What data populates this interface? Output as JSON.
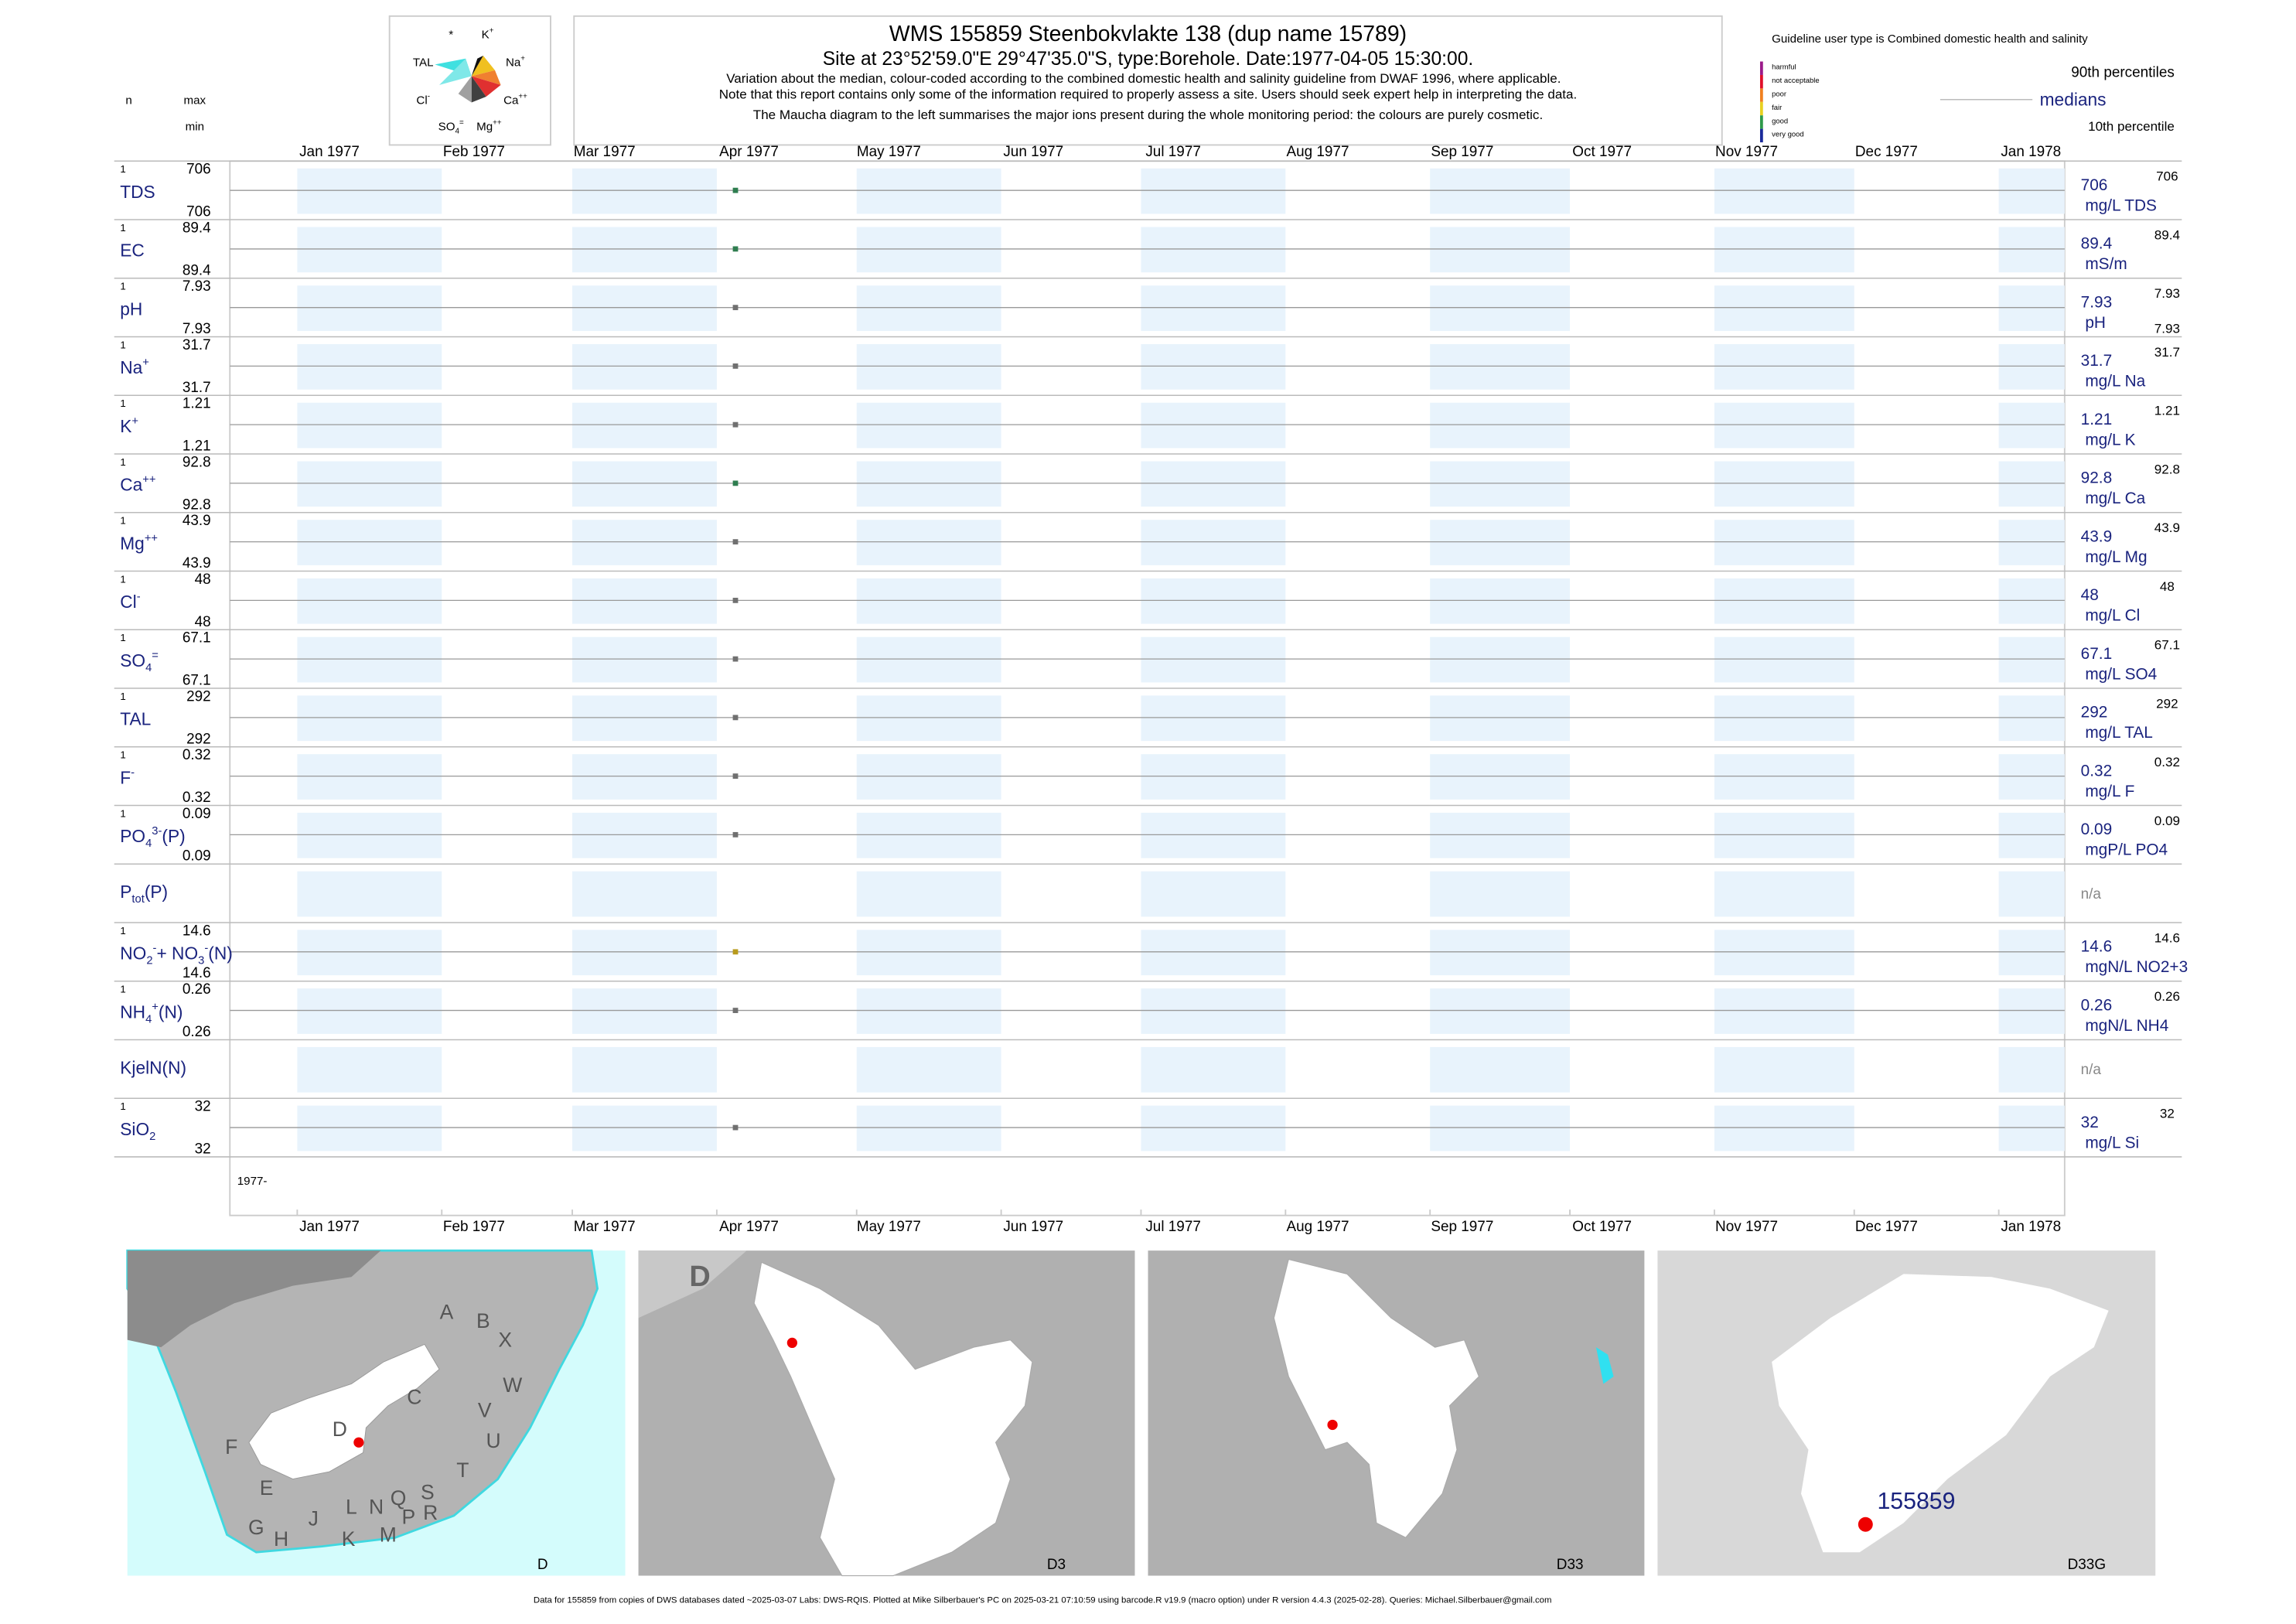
{
  "header": {
    "title": "WMS 155859  Steenbokvlakte 138 (dup name 15789)",
    "subtitle": "Site at 23°52'59.0\"E 29°47'35.0\"S, type:Borehole. Date:1977-04-05 15:30:00.",
    "notes": [
      "Variation about the median,  colour-coded according to the combined domestic health and salinity guideline from DWAF 1996, where applicable.",
      "Note that this report contains only some of the information required to properly assess a site. Users should seek expert help in interpreting the data.",
      "The Maucha diagram to the left summarises the major ions present during the whole monitoring period: the colours are purely cosmetic."
    ]
  },
  "left_header": {
    "n": "n",
    "max": "max",
    "min": "min"
  },
  "guideline": {
    "title": "Guideline user type is Combined domestic health and salinity",
    "levels": [
      {
        "label": "harmful",
        "color": "#9b1b8a"
      },
      {
        "label": "not acceptable",
        "color": "#e0102a"
      },
      {
        "label": "poor",
        "color": "#f08020"
      },
      {
        "label": "fair",
        "color": "#e8d020"
      },
      {
        "label": "good",
        "color": "#2e9a4a"
      },
      {
        "label": "very good",
        "color": "#1a2a9a"
      }
    ]
  },
  "percentile_legend": {
    "p90": "90th percentiles",
    "median": "medians",
    "p10": "10th percentile"
  },
  "maucha": {
    "labels": [
      [
        {
          "text": "*"
        }
      ],
      [
        {
          "text": "K"
        },
        {
          "text": "+",
          "pos": "sup"
        }
      ],
      [
        {
          "text": "TAL"
        }
      ],
      [
        {
          "text": "Na"
        },
        {
          "text": "+",
          "pos": "sup"
        }
      ],
      [
        {
          "text": "Cl"
        },
        {
          "text": "-",
          "pos": "sup"
        }
      ],
      [
        {
          "text": "Ca"
        },
        {
          "text": "++",
          "pos": "sup"
        }
      ],
      [
        {
          "text": "SO"
        },
        {
          "text": "4",
          "pos": "sub"
        },
        {
          "text": "=",
          "pos": "sup"
        }
      ],
      [
        {
          "text": "Mg"
        },
        {
          "text": "++",
          "pos": "sup"
        }
      ]
    ]
  },
  "time_axis": {
    "ticks": [
      {
        "value": "1977-01-01",
        "label": "Jan 1977"
      },
      {
        "value": "1977-02-01",
        "label": "Feb 1977"
      },
      {
        "value": "1977-03-01",
        "label": "Mar 1977"
      },
      {
        "value": "1977-04-01",
        "label": "Apr 1977"
      },
      {
        "value": "1977-05-01",
        "label": "May 1977"
      },
      {
        "value": "1977-06-01",
        "label": "Jun 1977"
      },
      {
        "value": "1977-07-01",
        "label": "Jul 1977"
      },
      {
        "value": "1977-08-01",
        "label": "Aug 1977"
      },
      {
        "value": "1977-09-01",
        "label": "Sep 1977"
      },
      {
        "value": "1977-10-01",
        "label": "Oct 1977"
      },
      {
        "value": "1977-11-01",
        "label": "Nov 1977"
      },
      {
        "value": "1977-12-01",
        "label": "Dec 1977"
      },
      {
        "value": "1978-01-01",
        "label": "Jan 1978"
      }
    ],
    "year_label": "1977-"
  },
  "chart_data": [
    {
      "type": "scatter",
      "name": [
        {
          "text": "TDS"
        }
      ],
      "n": 1,
      "max": 706,
      "min": 706,
      "x": [
        "1977-04-05"
      ],
      "values": [
        706
      ],
      "color": "#2e7d4f",
      "median": 706,
      "unit": "mg/L TDS",
      "p90": 706
    },
    {
      "type": "scatter",
      "name": [
        {
          "text": "EC"
        }
      ],
      "n": 1,
      "max": 89.4,
      "min": 89.4,
      "x": [
        "1977-04-05"
      ],
      "values": [
        89.4
      ],
      "color": "#2e7d4f",
      "median": 89.4,
      "unit": "mS/m",
      "p90": 89.4
    },
    {
      "type": "scatter",
      "name": [
        {
          "text": "pH"
        }
      ],
      "n": 1,
      "max": 7.93,
      "min": 7.93,
      "x": [
        "1977-04-05"
      ],
      "values": [
        7.93
      ],
      "color": "#707070",
      "median": 7.93,
      "unit": "pH",
      "p90": 7.93,
      "p10": 7.93
    },
    {
      "type": "scatter",
      "name": [
        {
          "text": "Na"
        },
        {
          "text": "+",
          "pos": "sup"
        }
      ],
      "n": 1,
      "max": 31.7,
      "min": 31.7,
      "x": [
        "1977-04-05"
      ],
      "values": [
        31.7
      ],
      "color": "#707070",
      "median": 31.7,
      "unit": "mg/L Na",
      "p90": 31.7
    },
    {
      "type": "scatter",
      "name": [
        {
          "text": "K"
        },
        {
          "text": "+",
          "pos": "sup"
        }
      ],
      "n": 1,
      "max": 1.21,
      "min": 1.21,
      "x": [
        "1977-04-05"
      ],
      "values": [
        1.21
      ],
      "color": "#707070",
      "median": 1.21,
      "unit": "mg/L K",
      "p90": 1.21
    },
    {
      "type": "scatter",
      "name": [
        {
          "text": "Ca"
        },
        {
          "text": "++",
          "pos": "sup"
        }
      ],
      "n": 1,
      "max": 92.8,
      "min": 92.8,
      "x": [
        "1977-04-05"
      ],
      "values": [
        92.8
      ],
      "color": "#2e7d4f",
      "median": 92.8,
      "unit": "mg/L Ca",
      "p90": 92.8
    },
    {
      "type": "scatter",
      "name": [
        {
          "text": "Mg"
        },
        {
          "text": "++",
          "pos": "sup"
        }
      ],
      "n": 1,
      "max": 43.9,
      "min": 43.9,
      "x": [
        "1977-04-05"
      ],
      "values": [
        43.9
      ],
      "color": "#707070",
      "median": 43.9,
      "unit": "mg/L Mg",
      "p90": 43.9
    },
    {
      "type": "scatter",
      "name": [
        {
          "text": "Cl"
        },
        {
          "text": "-",
          "pos": "sup"
        }
      ],
      "n": 1,
      "max": 48,
      "min": 48,
      "x": [
        "1977-04-05"
      ],
      "values": [
        48
      ],
      "color": "#707070",
      "median": 48,
      "unit": "mg/L Cl",
      "p90": 48
    },
    {
      "type": "scatter",
      "name": [
        {
          "text": "SO"
        },
        {
          "text": "4",
          "pos": "sub"
        },
        {
          "text": "=",
          "pos": "sup"
        }
      ],
      "n": 1,
      "max": 67.1,
      "min": 67.1,
      "x": [
        "1977-04-05"
      ],
      "values": [
        67.1
      ],
      "color": "#707070",
      "median": 67.1,
      "unit": "mg/L SO4",
      "p90": 67.1
    },
    {
      "type": "scatter",
      "name": [
        {
          "text": "TAL"
        }
      ],
      "n": 1,
      "max": 292,
      "min": 292,
      "x": [
        "1977-04-05"
      ],
      "values": [
        292
      ],
      "color": "#707070",
      "median": 292,
      "unit": "mg/L TAL",
      "p90": 292
    },
    {
      "type": "scatter",
      "name": [
        {
          "text": "F"
        },
        {
          "text": "-",
          "pos": "sup"
        }
      ],
      "n": 1,
      "max": 0.32,
      "min": 0.32,
      "x": [
        "1977-04-05"
      ],
      "values": [
        0.32
      ],
      "color": "#707070",
      "median": 0.32,
      "unit": "mg/L F",
      "p90": 0.32
    },
    {
      "type": "scatter",
      "name": [
        {
          "text": "PO"
        },
        {
          "text": "4",
          "pos": "sub"
        },
        {
          "text": "3-",
          "pos": "sup"
        },
        {
          "text": "(P)"
        }
      ],
      "n": 1,
      "max": 0.09,
      "min": 0.09,
      "x": [
        "1977-04-05"
      ],
      "values": [
        0.09
      ],
      "color": "#707070",
      "median": 0.09,
      "unit": "mgP/L PO4",
      "p90": 0.09
    },
    {
      "type": "scatter",
      "name": [
        {
          "text": "P"
        },
        {
          "text": "tot",
          "pos": "sub"
        },
        {
          "text": "(P)"
        }
      ],
      "median": "n/a"
    },
    {
      "type": "scatter",
      "name": [
        {
          "text": "NO"
        },
        {
          "text": "2",
          "pos": "sub"
        },
        {
          "text": "-",
          "pos": "sup"
        },
        {
          "text": "+ NO"
        },
        {
          "text": "3",
          "pos": "sub"
        },
        {
          "text": "-",
          "pos": "sup"
        },
        {
          "text": "(N)"
        }
      ],
      "n": 1,
      "max": 14.6,
      "min": 14.6,
      "x": [
        "1977-04-05"
      ],
      "values": [
        14.6
      ],
      "color": "#b89a1c",
      "median": 14.6,
      "unit": "mgN/L NO2+3",
      "p90": 14.6
    },
    {
      "type": "scatter",
      "name": [
        {
          "text": "NH"
        },
        {
          "text": "4",
          "pos": "sub"
        },
        {
          "text": "+",
          "pos": "sup"
        },
        {
          "text": "(N)"
        }
      ],
      "n": 1,
      "max": 0.26,
      "min": 0.26,
      "x": [
        "1977-04-05"
      ],
      "values": [
        0.26
      ],
      "color": "#707070",
      "median": 0.26,
      "unit": "mgN/L NH4",
      "p90": 0.26
    },
    {
      "type": "scatter",
      "name": [
        {
          "text": "KjelN(N)"
        }
      ],
      "median": "n/a"
    },
    {
      "type": "scatter",
      "name": [
        {
          "text": "SiO"
        },
        {
          "text": "2",
          "pos": "sub"
        }
      ],
      "n": 1,
      "max": 32,
      "min": 32,
      "x": [
        "1977-04-05"
      ],
      "values": [
        32
      ],
      "color": "#707070",
      "median": 32,
      "unit": "mg/L Si",
      "p90": 32
    }
  ],
  "maps": [
    {
      "label": "D",
      "letters": [
        "A",
        "B",
        "X",
        "C",
        "W",
        "V",
        "U",
        "D",
        "F",
        "T",
        "E",
        "S",
        "R",
        "Q",
        "N",
        "L",
        "P",
        "M",
        "K",
        "J",
        "H",
        "G"
      ]
    },
    {
      "label": "D3",
      "letters": [
        "D"
      ]
    },
    {
      "label": "D33"
    },
    {
      "label": "D33G",
      "site": "155859"
    }
  ],
  "footer": "Data for 155859 from copies of DWS databases dated ~2025-03-07 Labs: DWS-RQIS. Plotted at Mike Silberbauer's PC on 2025-03-21 07:10:59 using barcode.R v19.9 (macro option) under R version 4.4.3 (2025-02-28). Queries: Michael.Silberbauer@gmail.com"
}
